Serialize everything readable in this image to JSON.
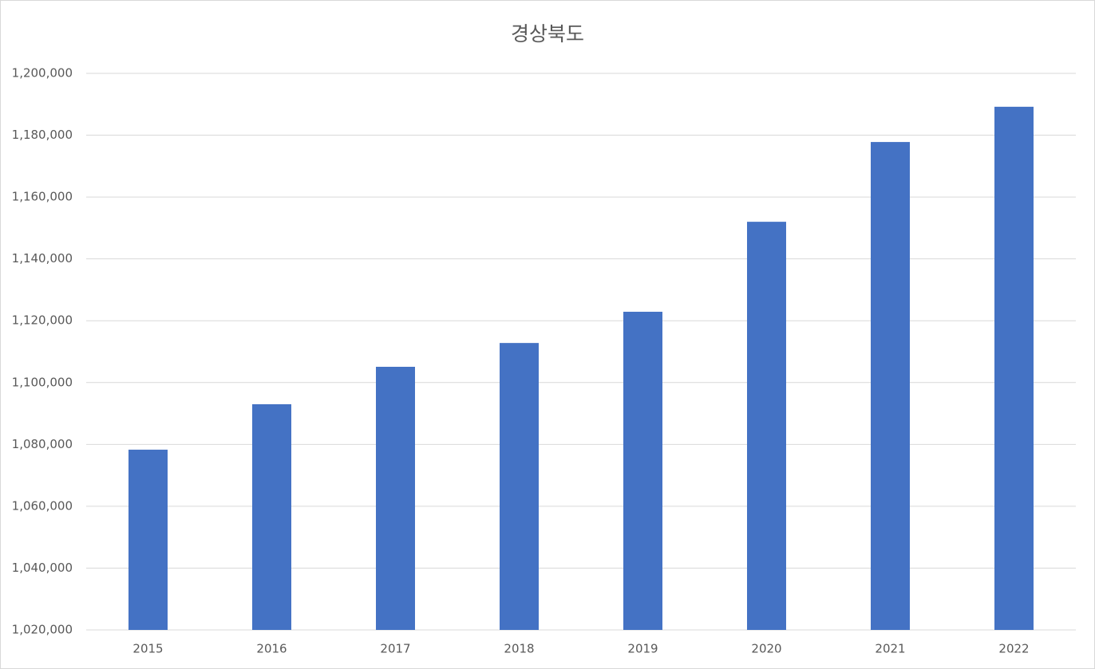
{
  "chart_data": {
    "type": "bar",
    "title": "경상북도",
    "categories": [
      "2015",
      "2016",
      "2017",
      "2018",
      "2019",
      "2020",
      "2021",
      "2022"
    ],
    "values": [
      1078300,
      1093000,
      1105100,
      1112800,
      1122900,
      1152000,
      1177800,
      1189200
    ],
    "color": "#4472c4",
    "ylim": [
      1020000,
      1200000
    ],
    "yticks": [
      {
        "value": 1020000,
        "label": "1,020,000"
      },
      {
        "value": 1040000,
        "label": "1,040,000"
      },
      {
        "value": 1060000,
        "label": "1,060,000"
      },
      {
        "value": 1080000,
        "label": "1,080,000"
      },
      {
        "value": 1100000,
        "label": "1,100,000"
      },
      {
        "value": 1120000,
        "label": "1,120,000"
      },
      {
        "value": 1140000,
        "label": "1,140,000"
      },
      {
        "value": 1160000,
        "label": "1,160,000"
      },
      {
        "value": 1180000,
        "label": "1,180,000"
      },
      {
        "value": 1200000,
        "label": "1,200,000"
      }
    ],
    "grid": true
  }
}
